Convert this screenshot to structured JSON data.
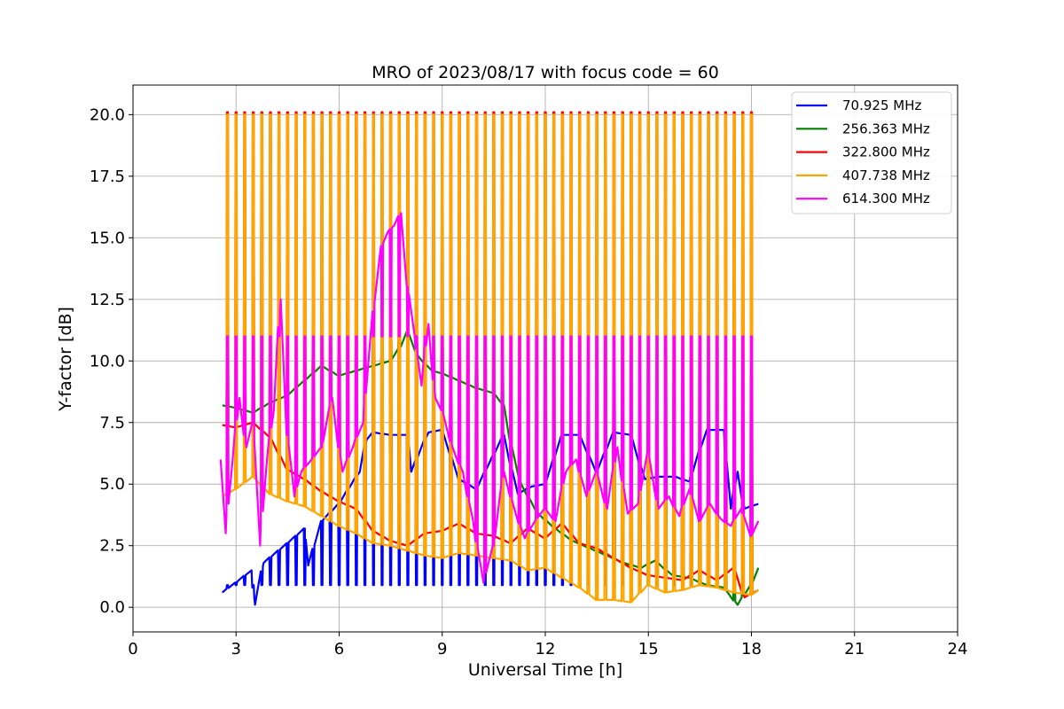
{
  "chart_data": {
    "type": "line",
    "title": "MRO of 2023/08/17 with focus code = 60",
    "xlabel": "Universal Time [h]",
    "ylabel": "Y-factor [dB]",
    "xlim": [
      0,
      24
    ],
    "ylim": [
      -1.0,
      21.2
    ],
    "xticks": [
      0,
      3,
      6,
      9,
      12,
      15,
      18,
      21,
      24
    ],
    "xtick_labels": [
      "0",
      "3",
      "6",
      "9",
      "12",
      "15",
      "18",
      "21",
      "24"
    ],
    "yticks": [
      0.0,
      2.5,
      5.0,
      7.5,
      10.0,
      12.5,
      15.0,
      17.5,
      20.0
    ],
    "ytick_labels": [
      "0.0",
      "2.5",
      "5.0",
      "7.5",
      "10.0",
      "12.5",
      "15.0",
      "17.5",
      "20.0"
    ],
    "grid": true,
    "legend_position": "top-right",
    "spike_times": [
      2.75,
      3.0,
      3.25,
      3.5,
      3.75,
      4.0,
      4.25,
      4.5,
      4.75,
      5.0,
      5.25,
      5.5,
      5.75,
      6.0,
      6.25,
      6.5,
      6.75,
      7.0,
      7.25,
      7.5,
      7.75,
      8.0,
      8.25,
      8.5,
      8.75,
      9.0,
      9.25,
      9.5,
      9.75,
      10.0,
      10.25,
      10.5,
      10.75,
      11.0,
      11.25,
      11.5,
      11.75,
      12.0,
      12.25,
      12.5,
      12.75,
      13.0,
      13.25,
      13.5,
      13.75,
      14.0,
      14.25,
      14.5,
      14.75,
      15.0,
      15.25,
      15.5,
      15.75,
      16.0,
      16.25,
      16.5,
      16.75,
      17.0,
      17.25,
      17.5,
      17.75,
      18.0
    ],
    "series": [
      {
        "name": " 70.925 MHz",
        "color": "#0000ff",
        "spike_top": 0.9,
        "x": [
          2.6,
          3.0,
          3.45,
          3.55,
          3.8,
          4.5,
          5.0,
          5.1,
          5.5,
          6.0,
          6.6,
          6.8,
          7.0,
          7.5,
          8.0,
          8.1,
          8.6,
          9.0,
          9.5,
          10.0,
          10.8,
          11.2,
          11.6,
          12.0,
          12.5,
          13.0,
          13.5,
          14.0,
          14.5,
          14.9,
          15.3,
          15.8,
          16.2,
          16.7,
          17.2,
          17.4,
          17.6,
          17.8,
          18.2
        ],
        "y": [
          0.6,
          1.0,
          1.5,
          0.1,
          1.8,
          2.6,
          3.2,
          1.7,
          3.5,
          4.2,
          5.5,
          6.8,
          7.1,
          7.0,
          7.0,
          5.5,
          7.1,
          7.2,
          5.2,
          4.8,
          7.0,
          4.6,
          4.9,
          5.0,
          7.0,
          7.0,
          5.5,
          7.1,
          7.0,
          5.2,
          5.3,
          5.3,
          5.1,
          7.2,
          7.2,
          4.0,
          5.5,
          4.0,
          4.2
        ]
      },
      {
        "name": "256.363 MHz",
        "color": "#008000",
        "spike_top": 11.0,
        "x": [
          2.6,
          3.0,
          3.5,
          4.0,
          4.5,
          5.0,
          5.5,
          6.0,
          6.5,
          7.0,
          7.5,
          7.8,
          8.0,
          8.3,
          8.7,
          9.0,
          9.5,
          10.0,
          10.5,
          10.8,
          11.0,
          11.3,
          11.8,
          12.3,
          12.8,
          13.3,
          13.8,
          14.3,
          14.8,
          15.2,
          15.7,
          16.2,
          16.7,
          17.2,
          17.6,
          18.0,
          18.2
        ],
        "y": [
          8.2,
          8.1,
          7.9,
          8.3,
          8.6,
          9.2,
          9.8,
          9.4,
          9.6,
          9.8,
          10.0,
          10.6,
          11.2,
          10.2,
          9.6,
          9.5,
          9.2,
          8.9,
          8.7,
          8.2,
          6.7,
          5.0,
          3.8,
          3.2,
          2.7,
          2.4,
          2.1,
          1.8,
          1.6,
          1.9,
          1.3,
          1.2,
          0.9,
          0.8,
          0.1,
          0.9,
          1.6
        ]
      },
      {
        "name": "322.800 MHz",
        "color": "#ff0000",
        "spike_top": 20.1,
        "x": [
          2.6,
          3.0,
          3.5,
          4.0,
          4.5,
          5.0,
          5.5,
          6.0,
          6.5,
          7.0,
          7.5,
          8.0,
          8.5,
          9.0,
          9.5,
          10.0,
          10.5,
          11.0,
          11.5,
          12.0,
          12.5,
          13.0,
          13.5,
          14.0,
          14.5,
          15.0,
          15.5,
          16.0,
          16.5,
          17.0,
          17.5,
          17.8,
          18.2
        ],
        "y": [
          7.4,
          7.3,
          7.5,
          6.9,
          5.6,
          5.2,
          4.7,
          4.3,
          4.0,
          3.1,
          2.7,
          2.5,
          3.0,
          3.1,
          3.4,
          3.0,
          2.9,
          2.6,
          3.2,
          2.8,
          3.4,
          2.6,
          2.4,
          2.0,
          1.6,
          1.3,
          1.2,
          1.1,
          1.5,
          1.1,
          1.6,
          0.4,
          0.7
        ]
      },
      {
        "name": "407.738 MHz",
        "color": "#ffa500",
        "spike_top": 20.0,
        "x": [
          2.6,
          3.0,
          3.5,
          4.0,
          4.5,
          5.0,
          5.5,
          6.0,
          6.5,
          7.0,
          7.5,
          8.0,
          8.5,
          9.0,
          9.5,
          10.0,
          10.5,
          11.0,
          11.5,
          12.0,
          12.5,
          13.0,
          13.5,
          14.0,
          14.5,
          15.0,
          15.5,
          16.0,
          16.5,
          17.0,
          17.5,
          18.0,
          18.2
        ],
        "y": [
          4.5,
          4.8,
          5.3,
          4.6,
          4.3,
          4.1,
          3.7,
          3.3,
          3.0,
          2.6,
          2.5,
          2.3,
          2.1,
          2.0,
          2.2,
          2.1,
          2.0,
          1.9,
          1.5,
          1.6,
          1.2,
          0.8,
          0.3,
          0.3,
          0.2,
          0.9,
          0.6,
          0.7,
          0.9,
          0.8,
          0.6,
          0.5,
          0.7
        ]
      },
      {
        "name": "614.300 MHz",
        "color": "#ff00ff",
        "spike_top": 11.0,
        "x": [
          2.55,
          2.7,
          2.9,
          3.1,
          3.3,
          3.5,
          3.7,
          3.9,
          4.1,
          4.3,
          4.5,
          4.7,
          4.9,
          5.2,
          5.5,
          5.8,
          6.1,
          6.4,
          6.7,
          7.0,
          7.2,
          7.4,
          7.6,
          7.8,
          8.0,
          8.2,
          8.4,
          8.6,
          8.8,
          9.0,
          9.3,
          9.6,
          9.9,
          10.2,
          10.5,
          10.8,
          11.1,
          11.4,
          11.7,
          12.0,
          12.3,
          12.6,
          12.9,
          13.2,
          13.5,
          13.8,
          14.1,
          14.4,
          14.7,
          15.0,
          15.3,
          15.6,
          15.9,
          16.2,
          16.5,
          16.8,
          17.1,
          17.4,
          17.7,
          18.0,
          18.2
        ],
        "y": [
          6.0,
          3.0,
          6.0,
          8.5,
          6.5,
          7.5,
          2.5,
          6.0,
          8.0,
          12.5,
          7.0,
          4.5,
          5.5,
          6.0,
          6.5,
          8.5,
          5.5,
          6.5,
          7.5,
          12.0,
          14.5,
          15.2,
          15.5,
          16.0,
          13.0,
          11.0,
          9.0,
          11.5,
          8.5,
          8.0,
          6.5,
          5.5,
          3.5,
          1.0,
          2.5,
          5.5,
          4.0,
          2.8,
          3.5,
          4.0,
          3.5,
          5.5,
          6.0,
          4.5,
          5.5,
          4.0,
          6.5,
          3.8,
          4.2,
          6.3,
          4.0,
          4.5,
          3.7,
          4.8,
          3.5,
          4.2,
          3.6,
          3.3,
          4.0,
          2.9,
          3.5
        ]
      }
    ]
  }
}
